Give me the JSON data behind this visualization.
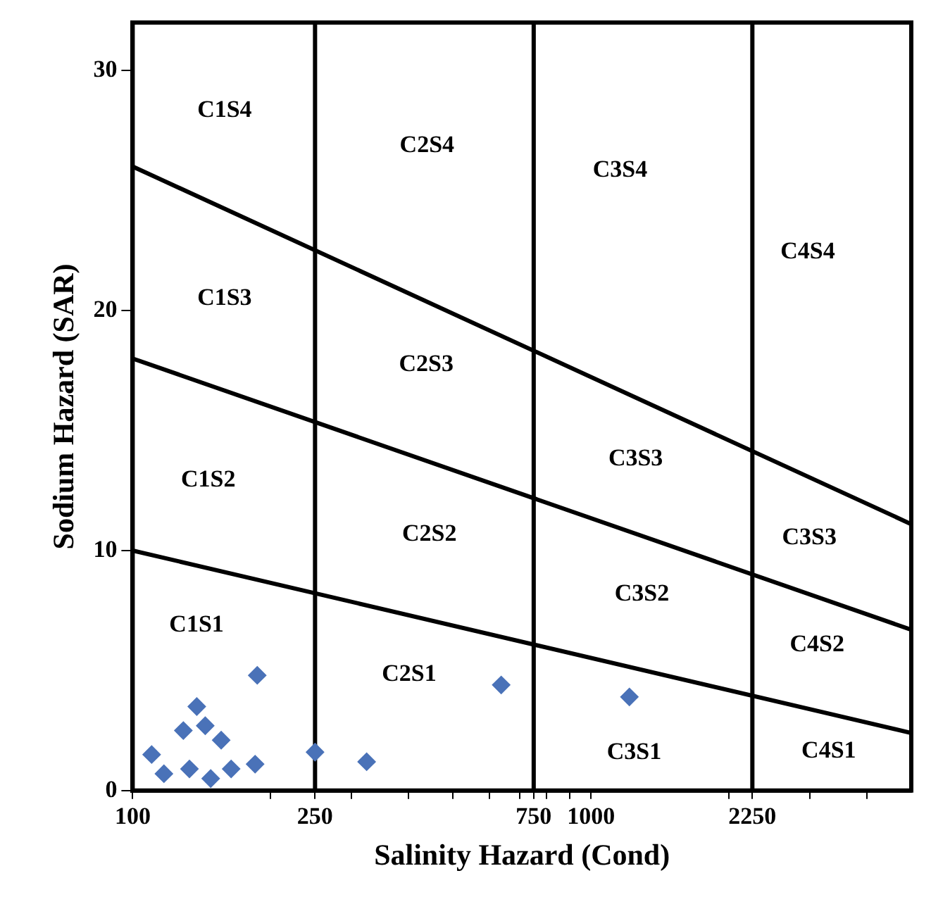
{
  "chart_data": {
    "type": "scatter",
    "xlabel": "Salinity Hazard (Cond)",
    "ylabel": "Sodium Hazard (SAR)",
    "log": "x",
    "xlim": [
      100,
      5000
    ],
    "xticks": [
      100,
      {
        "value": 200,
        "label": null
      },
      250,
      {
        "value": 300,
        "label": null
      },
      {
        "value": 400,
        "label": null
      },
      {
        "value": 500,
        "label": null
      },
      {
        "value": 600,
        "label": null
      },
      {
        "value": 700,
        "label": null
      },
      750,
      {
        "value": 800,
        "label": null
      },
      {
        "value": 900,
        "label": null
      },
      1000,
      {
        "value": 2000,
        "label": null
      },
      2250,
      {
        "value": 3000,
        "label": null
      },
      {
        "value": 4000,
        "label": null
      }
    ],
    "ylim": [
      0,
      32
    ],
    "yticks": [
      0,
      10,
      20,
      30
    ],
    "grid": false,
    "legend": false,
    "marker": "diamond",
    "series": [
      {
        "color": "#4a72b8",
        "x": [
          110,
          117,
          129,
          133,
          138,
          144,
          148,
          156,
          164,
          185,
          187,
          250,
          324,
          637,
          1213
        ],
        "values": [
          1.5,
          0.7,
          2.5,
          0.9,
          3.5,
          2.7,
          0.5,
          2.1,
          0.9,
          1.1,
          4.8,
          1.6,
          1.2,
          4.4,
          3.9
        ]
      },
      {
        "type": "line",
        "color": "#000000",
        "marker": "none",
        "x": [
          100,
          5000
        ],
        "values": [
          10,
          2.4
        ]
      },
      {
        "type": "line",
        "color": "#000000",
        "marker": "none",
        "x": [
          100,
          5000
        ],
        "values": [
          18,
          6.7
        ]
      },
      {
        "type": "line",
        "color": "#000000",
        "marker": "none",
        "x": [
          100,
          5000
        ],
        "values": [
          26,
          11.1
        ]
      }
    ],
    "ref_lines": [
      {
        "axis": "x",
        "value": 250,
        "color": "#000000"
      },
      {
        "axis": "x",
        "value": 750,
        "color": "#000000"
      },
      {
        "axis": "x",
        "value": 2250,
        "color": "#000000"
      }
    ],
    "annotations": [
      "C1S4",
      "C2S4",
      "C3S4",
      "C4S4",
      "C1S3",
      "C2S3",
      "C3S3",
      "C3S3",
      "C1S2",
      "C2S2",
      "C3S2",
      "C4S2",
      "C1S1",
      "C2S1",
      "C3S1",
      "C4S1"
    ]
  }
}
